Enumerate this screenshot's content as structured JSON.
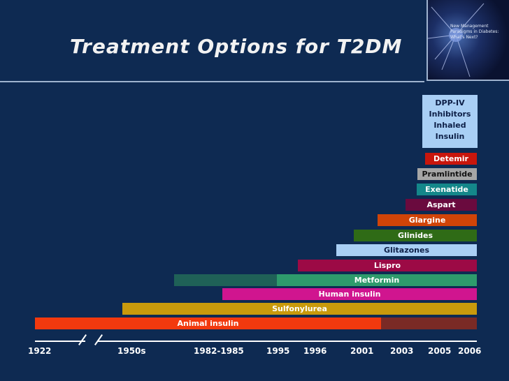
{
  "slide": {
    "title": "Treatment Options for T2DM"
  },
  "corner_image": {
    "caption": "New Management Paradigms in Diabetes: What's Next?"
  },
  "newest": {
    "label_lines": [
      "DPP-IV",
      "Inhibitors",
      "Inhaled",
      "Insulin"
    ]
  },
  "treatments": [
    {
      "label": "Detemir",
      "start": "2005",
      "color": "#c8160c"
    },
    {
      "label": "Pramlintide",
      "start": "2005",
      "color": "#a6a6a6"
    },
    {
      "label": "Exenatide",
      "start": "2005",
      "color": "#14878a"
    },
    {
      "label": "Aspart",
      "start": "2003",
      "color": "#6a0a3e"
    },
    {
      "label": "Glargine",
      "start": "2001",
      "color": "#d04408"
    },
    {
      "label": "Glinides",
      "start": "1996",
      "color": "#2f6b16"
    },
    {
      "label": "Glitazones",
      "start": "1996",
      "color": "#a9cff5"
    },
    {
      "label": "Lispro",
      "start": "1995",
      "color": "#9c0a45"
    },
    {
      "label": "Metformin",
      "start": "1995",
      "color": "#2e9b6c",
      "earlier_color": "#1f6157"
    },
    {
      "label": "Human insulin",
      "start": "1982-1985",
      "color": "#d0158f"
    },
    {
      "label": "Sulfonylurea",
      "start": "1950s",
      "color": "#c99a0c"
    },
    {
      "label": "Animal insulin",
      "start": "1922",
      "color": "#f2390e",
      "later_color": "#7a2a25"
    }
  ],
  "axis": {
    "years": [
      "1922",
      "1950s",
      "1982-1985",
      "1995",
      "1996",
      "2001",
      "2003",
      "2005",
      "2006"
    ]
  }
}
